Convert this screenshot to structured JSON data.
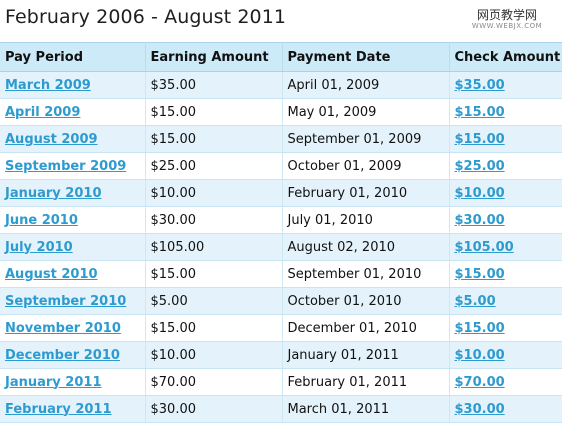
{
  "title": "February 2006 - August 2011",
  "watermark": {
    "text": "网页教学网",
    "url": "WWW.WEBJX.COM"
  },
  "colors": {
    "header_bg": "#cdeaf8",
    "row_alt_bg": "#e4f3fb",
    "link": "#2d9bd0"
  },
  "table": {
    "headers": [
      "Pay Period",
      "Earning Amount",
      "Payment Date",
      "Check Amount"
    ],
    "rows": [
      {
        "period": "March 2009",
        "earning": "$35.00",
        "date": "April 01, 2009",
        "check": "$35.00"
      },
      {
        "period": "April 2009",
        "earning": "$15.00",
        "date": "May 01, 2009",
        "check": "$15.00"
      },
      {
        "period": "August 2009",
        "earning": "$15.00",
        "date": "September 01, 2009",
        "check": "$15.00"
      },
      {
        "period": "September 2009",
        "earning": "$25.00",
        "date": "October 01, 2009",
        "check": "$25.00"
      },
      {
        "period": "January 2010",
        "earning": "$10.00",
        "date": "February 01, 2010",
        "check": "$10.00"
      },
      {
        "period": "June 2010",
        "earning": "$30.00",
        "date": "July 01, 2010",
        "check": "$30.00"
      },
      {
        "period": "July 2010",
        "earning": "$105.00",
        "date": "August 02, 2010",
        "check": "$105.00"
      },
      {
        "period": "August 2010",
        "earning": "$15.00",
        "date": "September 01, 2010",
        "check": "$15.00"
      },
      {
        "period": "September 2010",
        "earning": "$5.00",
        "date": "October 01, 2010",
        "check": "$5.00"
      },
      {
        "period": "November 2010",
        "earning": "$15.00",
        "date": "December 01, 2010",
        "check": "$15.00"
      },
      {
        "period": "December 2010",
        "earning": "$10.00",
        "date": "January 01, 2011",
        "check": "$10.00"
      },
      {
        "period": "January 2011",
        "earning": "$70.00",
        "date": "February 01, 2011",
        "check": "$70.00"
      },
      {
        "period": "February 2011",
        "earning": "$30.00",
        "date": "March 01, 2011",
        "check": "$30.00"
      }
    ]
  }
}
